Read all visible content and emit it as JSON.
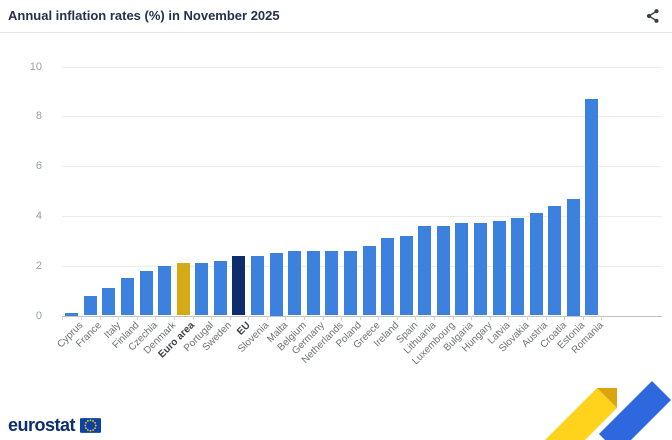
{
  "header": {
    "title": "Annual inflation rates (%) in November 2025"
  },
  "icons": {
    "share": "share-icon",
    "eu_flag": "eu-flag-icon"
  },
  "chart_data": {
    "type": "bar",
    "title": "Annual inflation rates (%) in November 2025",
    "categories": [
      "Cyprus",
      "France",
      "Italy",
      "Finland",
      "Czechia",
      "Denmark",
      "Euro area",
      "Portugal",
      "Sweden",
      "EU",
      "Slovenia",
      "Malta",
      "Belgium",
      "Germany",
      "Netherlands",
      "Poland",
      "Greece",
      "Ireland",
      "Spain",
      "Lithuania",
      "Luxembourg",
      "Bulgaria",
      "Hungary",
      "Latvia",
      "Slovakia",
      "Austria",
      "Croatia",
      "Estonia",
      "Romania"
    ],
    "values": [
      0.1,
      0.8,
      1.1,
      1.5,
      1.8,
      2.0,
      2.1,
      2.1,
      2.2,
      2.4,
      2.4,
      2.5,
      2.6,
      2.6,
      2.6,
      2.6,
      2.8,
      3.1,
      3.2,
      3.6,
      3.6,
      3.7,
      3.7,
      3.8,
      3.9,
      4.1,
      4.4,
      4.7,
      8.7
    ],
    "bold_categories": [
      "Euro area",
      "EU"
    ],
    "xlabel": "",
    "ylabel": "",
    "ylim": [
      0,
      10
    ],
    "yticks": [
      0,
      2,
      4,
      6,
      8,
      10
    ],
    "grid": "horizontal",
    "legend": "none",
    "bar_colors": {
      "default": "#3C81DE",
      "Euro area": "#D6A917",
      "EU": "#0D2D6C"
    },
    "axis_text_color": "#9aa0a6",
    "category_text_color": "#6e7072"
  },
  "footer": {
    "logo_text": "eurostat"
  }
}
